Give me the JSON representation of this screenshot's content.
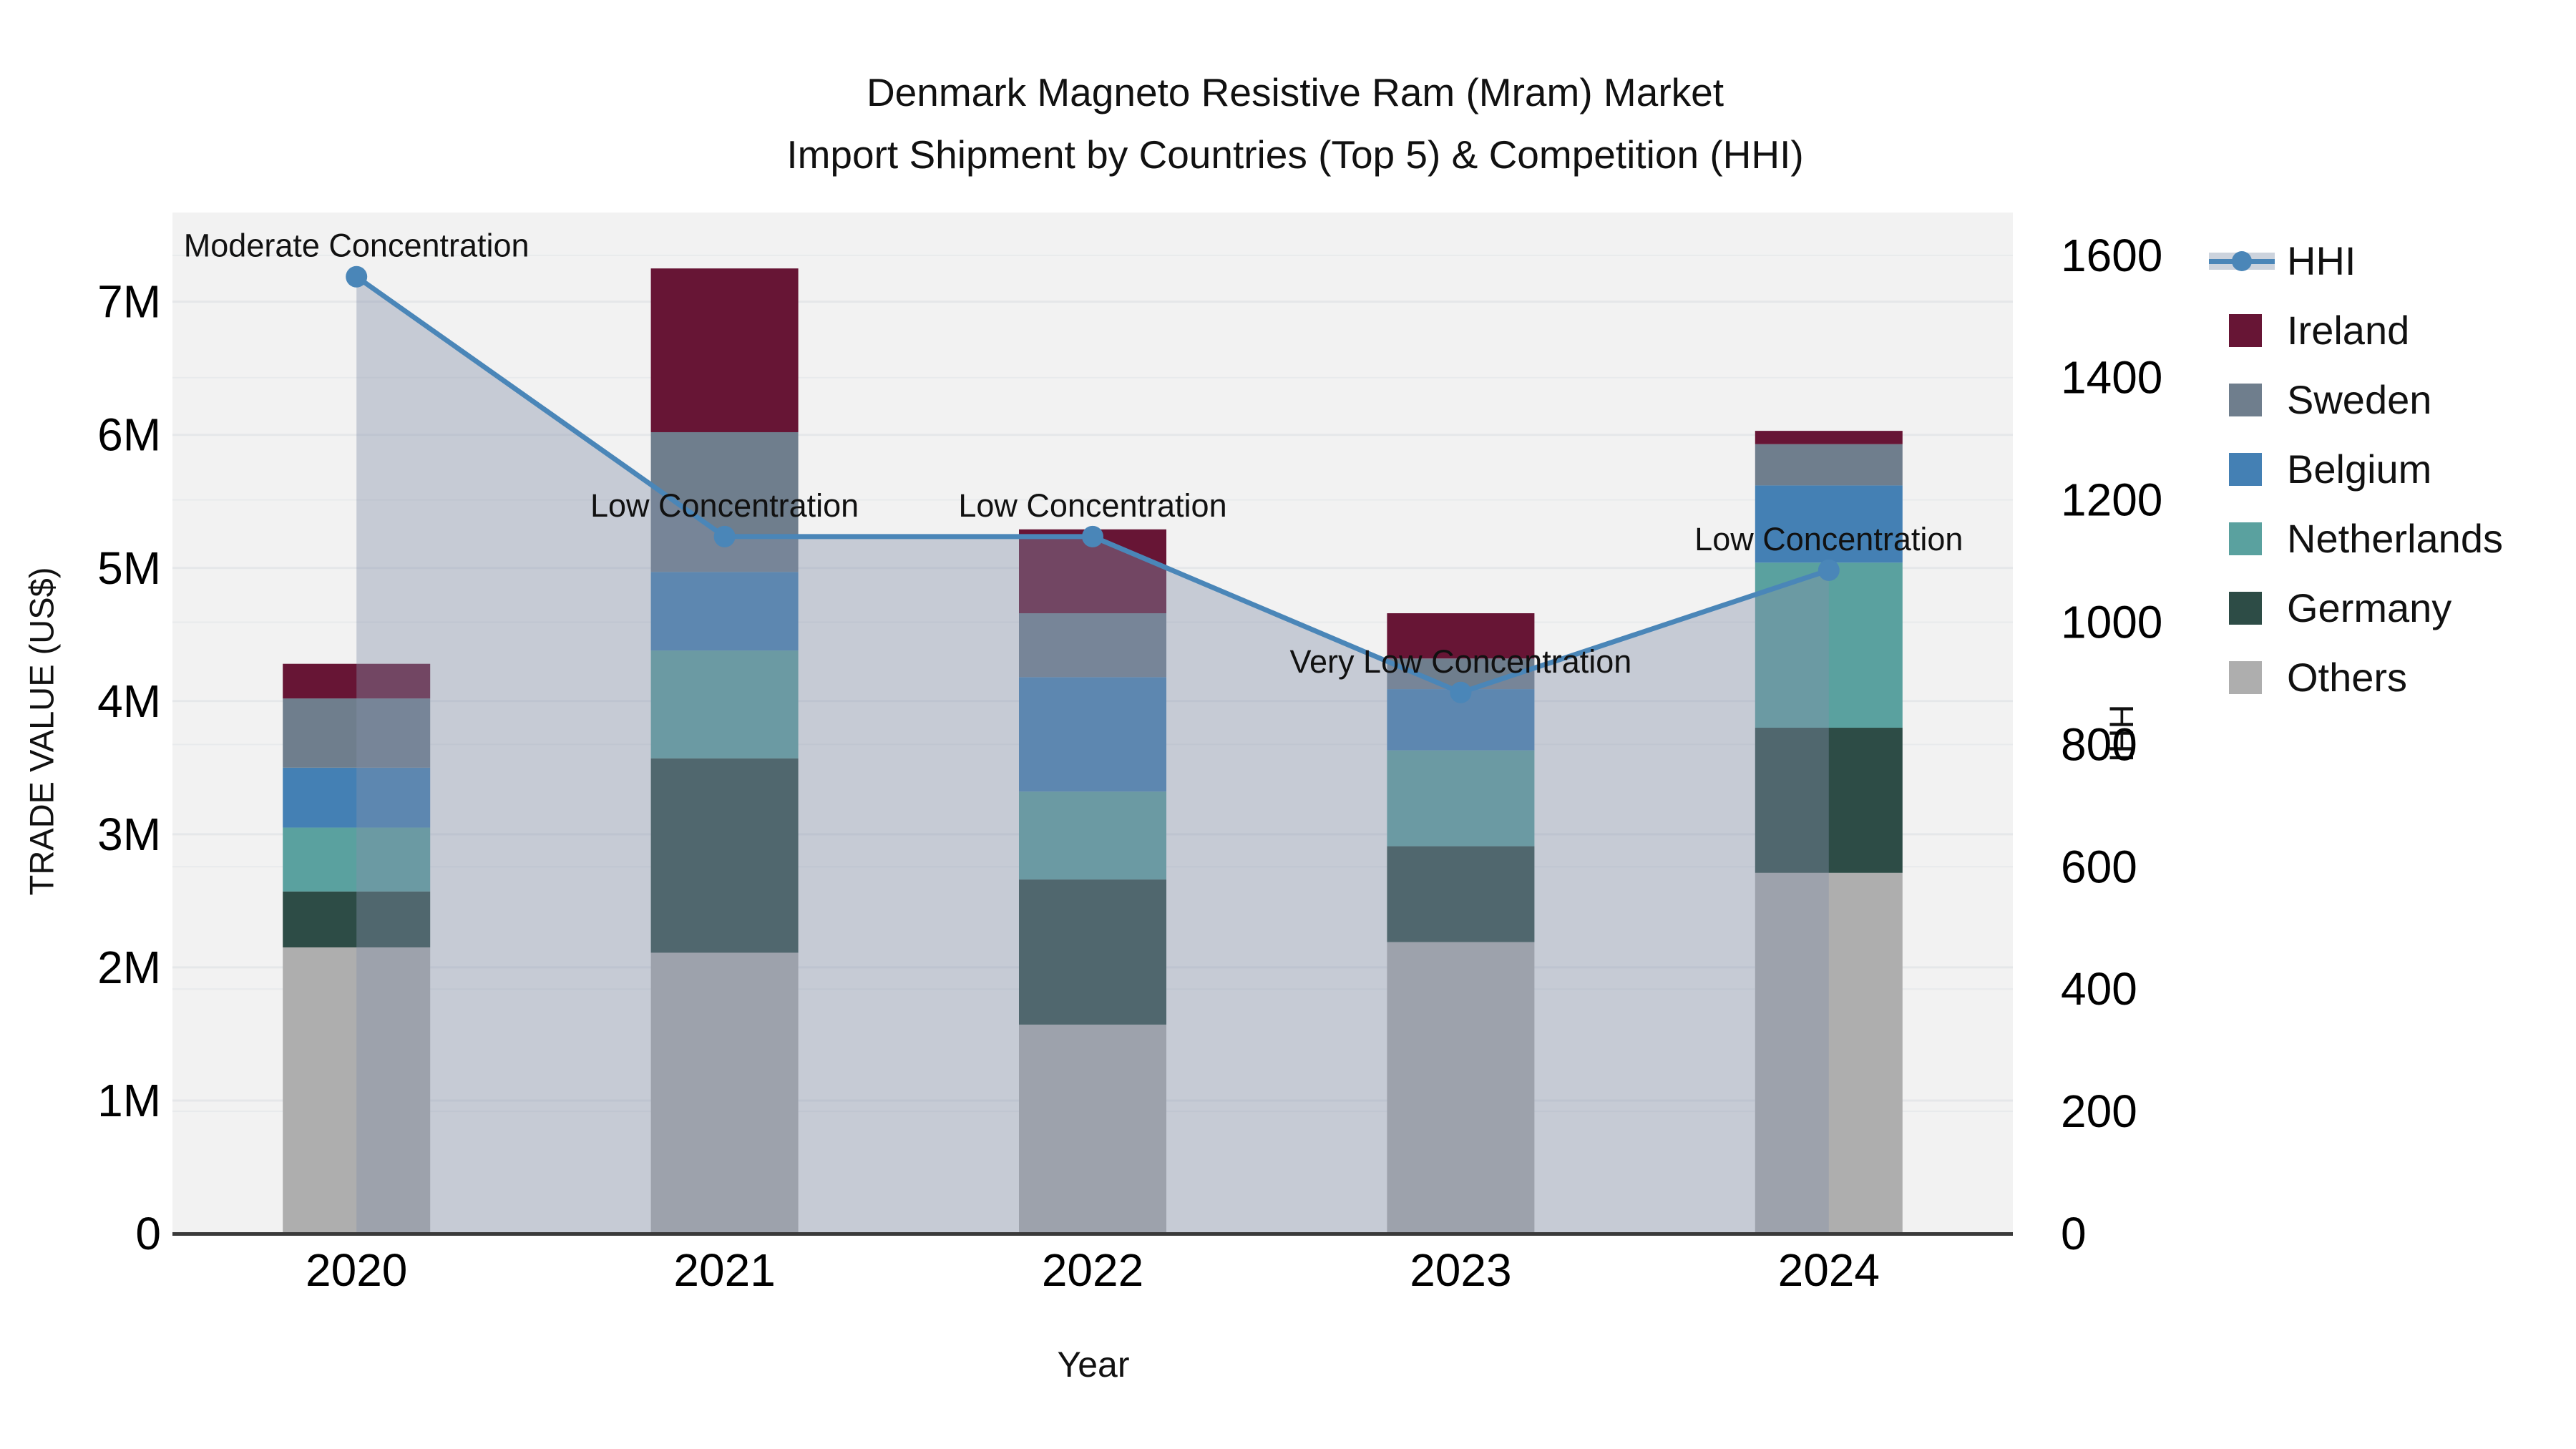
{
  "chart_data": {
    "type": "bar+line",
    "title": "Denmark Magneto Resistive Ram (Mram) Market",
    "subtitle": "Import Shipment by Countries (Top 5) & Competition (HHI)",
    "xlabel": "Year",
    "ylabel": "TRADE VALUE (US$)",
    "y2label": "HHI",
    "categories": [
      "2020",
      "2021",
      "2022",
      "2023",
      "2024"
    ],
    "units": "US$ millions",
    "series": [
      {
        "name": "Others",
        "color": "#aeaeae",
        "values": [
          2.15,
          2.11,
          1.57,
          2.19,
          2.71
        ]
      },
      {
        "name": "Germany",
        "color": "#2d4c46",
        "values": [
          0.42,
          1.46,
          1.09,
          0.72,
          1.09
        ]
      },
      {
        "name": "Netherlands",
        "color": "#5aa19f",
        "values": [
          0.48,
          0.81,
          0.66,
          0.72,
          1.24
        ]
      },
      {
        "name": "Belgium",
        "color": "#4480b4",
        "values": [
          0.45,
          0.59,
          0.86,
          0.46,
          0.58
        ]
      },
      {
        "name": "Sweden",
        "color": "#6f7e8d",
        "values": [
          0.52,
          1.05,
          0.48,
          0.23,
          0.31
        ]
      },
      {
        "name": "Ireland",
        "color": "#671535",
        "values": [
          0.26,
          1.23,
          0.63,
          0.34,
          0.1
        ]
      }
    ],
    "bar_totals": [
      4.28,
      7.25,
      5.29,
      4.66,
      6.03
    ],
    "hhi": {
      "name": "HHI",
      "color": "#4a86b8",
      "area_fill": "rgba(132,145,171,0.4)",
      "values": [
        1565,
        1140,
        1140,
        885,
        1085
      ],
      "annotations": [
        "Moderate Concentration",
        "Low Concentration",
        "Low Concentration",
        "Very Low Concentration",
        "Low Concentration"
      ]
    },
    "yticks": [
      "0",
      "1M",
      "2M",
      "3M",
      "4M",
      "5M",
      "6M",
      "7M"
    ],
    "ytick_values": [
      0,
      1,
      2,
      3,
      4,
      5,
      6,
      7
    ],
    "y2ticks": [
      "0",
      "200",
      "400",
      "600",
      "800",
      "1000",
      "1200",
      "1400",
      "1600"
    ],
    "y2tick_values": [
      0,
      200,
      400,
      600,
      800,
      1000,
      1200,
      1400,
      1600
    ],
    "ylim": [
      0,
      7.67
    ],
    "y2lim": [
      0,
      1670
    ],
    "grid": true,
    "plot_background": "#f2f2f2",
    "gridline_color": "#e4e6e9",
    "legend_position": "right",
    "legend_order": [
      "HHI",
      "Ireland",
      "Sweden",
      "Belgium",
      "Netherlands",
      "Germany",
      "Others"
    ]
  }
}
